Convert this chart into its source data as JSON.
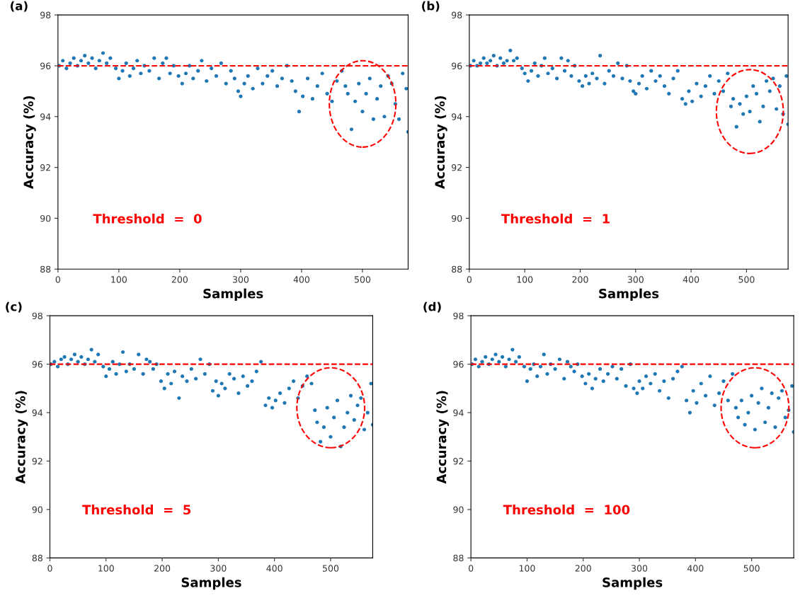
{
  "chart_data": [
    {
      "type": "scatter",
      "title": "(a)",
      "xlabel": "Samples",
      "ylabel": "Accuracy (%)",
      "xlim": [
        0,
        575
      ],
      "ylim": [
        88,
        98
      ],
      "xticks": [
        0,
        100,
        200,
        300,
        400,
        500
      ],
      "yticks": [
        88,
        90,
        92,
        94,
        96,
        98
      ],
      "grid": false,
      "marker": "circle",
      "annotations": [
        "Threshold  =  0"
      ],
      "ref_lines": [
        {
          "axis": "y",
          "value": 96,
          "color": "#ff0000",
          "line_style": "dashed"
        }
      ],
      "x": [
        2,
        8,
        14,
        20,
        26,
        32,
        38,
        44,
        50,
        56,
        62,
        68,
        74,
        80,
        86,
        95,
        100,
        106,
        112,
        118,
        124,
        130,
        136,
        142,
        150,
        158,
        166,
        172,
        178,
        184,
        190,
        198,
        204,
        210,
        216,
        222,
        230,
        236,
        244,
        252,
        260,
        268,
        276,
        284,
        290,
        296,
        300,
        306,
        312,
        320,
        328,
        336,
        344,
        352,
        360,
        368,
        376,
        384,
        390,
        396,
        402,
        410,
        418,
        426,
        434,
        442,
        450,
        458,
        466,
        472,
        476,
        482,
        488,
        494,
        500,
        506,
        512,
        518,
        524,
        530,
        536,
        542,
        548,
        554,
        560,
        566,
        572,
        575
      ],
      "series": [
        {
          "color": "#1f77b4",
          "values": [
            96.0,
            96.2,
            95.9,
            96.1,
            96.3,
            96.0,
            96.2,
            96.4,
            96.1,
            96.3,
            95.9,
            96.2,
            96.5,
            96.1,
            96.3,
            95.9,
            95.5,
            95.8,
            96.1,
            95.6,
            95.9,
            96.2,
            95.7,
            96.0,
            95.8,
            96.3,
            95.5,
            96.1,
            96.3,
            95.7,
            96.0,
            95.6,
            95.3,
            95.7,
            96.0,
            95.5,
            95.8,
            96.2,
            95.4,
            95.9,
            95.6,
            96.1,
            95.3,
            95.8,
            95.5,
            95.0,
            94.8,
            95.3,
            95.6,
            95.1,
            95.9,
            95.3,
            95.6,
            95.8,
            95.2,
            95.5,
            96.0,
            95.4,
            95.0,
            94.2,
            94.8,
            95.5,
            94.7,
            95.2,
            95.7,
            94.9,
            94.6,
            95.4,
            95.8,
            95.2,
            94.9,
            93.5,
            94.6,
            95.3,
            94.2,
            94.9,
            95.5,
            93.9,
            94.7,
            95.2,
            94.0,
            95.6,
            95.3,
            94.5,
            93.9,
            95.7,
            95.1,
            93.4
          ]
        }
      ]
    },
    {
      "type": "scatter",
      "title": "(b)",
      "xlabel": "Samples",
      "ylabel": "Accuracy (%)",
      "xlim": [
        0,
        575
      ],
      "ylim": [
        88,
        98
      ],
      "xticks": [
        0,
        100,
        200,
        300,
        400,
        500
      ],
      "yticks": [
        88,
        90,
        92,
        94,
        96,
        98
      ],
      "grid": false,
      "marker": "circle",
      "annotations": [
        "Threshold  =  1"
      ],
      "ref_lines": [
        {
          "axis": "y",
          "value": 96,
          "color": "#ff0000",
          "line_style": "dashed"
        }
      ],
      "x": [
        2,
        8,
        14,
        20,
        26,
        32,
        38,
        44,
        50,
        56,
        62,
        68,
        74,
        80,
        86,
        95,
        100,
        106,
        112,
        118,
        124,
        130,
        136,
        142,
        150,
        158,
        166,
        172,
        178,
        184,
        190,
        198,
        204,
        210,
        216,
        222,
        230,
        236,
        244,
        252,
        260,
        268,
        276,
        284,
        290,
        296,
        300,
        306,
        312,
        320,
        328,
        336,
        344,
        352,
        360,
        368,
        376,
        384,
        390,
        396,
        402,
        410,
        418,
        426,
        434,
        442,
        450,
        458,
        466,
        472,
        476,
        482,
        488,
        494,
        500,
        506,
        512,
        518,
        524,
        530,
        536,
        542,
        548,
        554,
        560,
        566,
        572,
        575
      ],
      "series": [
        {
          "color": "#1f77b4",
          "values": [
            96.0,
            96.2,
            96.0,
            96.1,
            96.3,
            96.1,
            96.2,
            96.4,
            96.0,
            96.3,
            96.1,
            96.2,
            96.6,
            96.2,
            96.3,
            95.9,
            95.7,
            95.4,
            95.8,
            96.1,
            95.6,
            96.0,
            96.3,
            95.7,
            95.9,
            95.5,
            96.3,
            95.8,
            96.2,
            95.6,
            96.0,
            95.4,
            95.2,
            95.6,
            95.3,
            95.7,
            95.5,
            96.4,
            95.3,
            95.8,
            95.6,
            96.1,
            95.5,
            96.0,
            95.4,
            95.0,
            94.9,
            95.3,
            95.6,
            95.1,
            95.8,
            95.4,
            95.6,
            95.2,
            94.9,
            95.5,
            95.8,
            94.7,
            94.5,
            95.0,
            94.6,
            95.3,
            94.8,
            95.2,
            95.6,
            94.9,
            95.4,
            95.0,
            95.7,
            94.4,
            94.7,
            93.6,
            94.5,
            94.1,
            94.8,
            94.2,
            95.2,
            94.9,
            93.8,
            94.4,
            95.4,
            95.0,
            95.5,
            94.3,
            95.2,
            94.1,
            95.6,
            93.7
          ]
        }
      ]
    },
    {
      "type": "scatter",
      "title": "(c)",
      "xlabel": "Samples",
      "ylabel": "Accuracy (%)",
      "xlim": [
        0,
        575
      ],
      "ylim": [
        88,
        98
      ],
      "xticks": [
        0,
        100,
        200,
        300,
        400,
        500
      ],
      "yticks": [
        88,
        90,
        92,
        94,
        96,
        98
      ],
      "grid": false,
      "marker": "circle",
      "annotations": [
        "Threshold  =  5"
      ],
      "ref_lines": [
        {
          "axis": "y",
          "value": 96,
          "color": "#ff0000",
          "line_style": "dashed"
        }
      ],
      "x": [
        2,
        8,
        14,
        20,
        26,
        32,
        38,
        44,
        50,
        56,
        62,
        68,
        74,
        80,
        86,
        95,
        100,
        106,
        112,
        118,
        124,
        130,
        136,
        142,
        150,
        158,
        166,
        172,
        178,
        184,
        190,
        198,
        204,
        210,
        216,
        222,
        230,
        236,
        244,
        252,
        260,
        268,
        276,
        284,
        290,
        296,
        300,
        306,
        312,
        320,
        328,
        336,
        344,
        352,
        360,
        368,
        376,
        384,
        390,
        396,
        402,
        410,
        418,
        426,
        434,
        442,
        450,
        458,
        466,
        472,
        476,
        482,
        488,
        494,
        500,
        506,
        512,
        518,
        524,
        530,
        536,
        542,
        548,
        554,
        560,
        566,
        572,
        575
      ],
      "series": [
        {
          "color": "#1f77b4",
          "values": [
            96.0,
            96.1,
            95.9,
            96.2,
            96.3,
            96.0,
            96.2,
            96.4,
            96.1,
            96.3,
            96.0,
            96.2,
            96.6,
            96.1,
            96.4,
            95.9,
            95.5,
            95.8,
            96.1,
            95.6,
            96.0,
            96.5,
            95.7,
            96.0,
            95.8,
            96.4,
            95.6,
            96.2,
            96.1,
            95.8,
            96.0,
            95.3,
            95.0,
            95.6,
            95.2,
            95.7,
            94.6,
            95.5,
            95.3,
            95.8,
            95.4,
            96.2,
            95.6,
            96.0,
            94.9,
            95.3,
            94.7,
            95.2,
            95.0,
            95.6,
            95.4,
            94.8,
            95.5,
            95.1,
            95.3,
            95.7,
            96.1,
            94.3,
            94.6,
            94.2,
            94.5,
            94.8,
            94.4,
            95.0,
            95.3,
            94.6,
            95.1,
            95.5,
            95.2,
            94.1,
            93.6,
            92.8,
            93.4,
            94.2,
            93.0,
            93.8,
            94.5,
            92.6,
            93.4,
            94.0,
            94.7,
            93.7,
            94.3,
            94.6,
            93.3,
            94.0,
            95.2,
            93.5
          ]
        }
      ]
    },
    {
      "type": "scatter",
      "title": "(d)",
      "xlabel": "Samples",
      "ylabel": "Accuracy (%)",
      "xlim": [
        0,
        575
      ],
      "ylim": [
        88,
        98
      ],
      "xticks": [
        0,
        100,
        200,
        300,
        400,
        500
      ],
      "yticks": [
        88,
        90,
        92,
        94,
        96,
        98
      ],
      "grid": false,
      "marker": "circle",
      "annotations": [
        "Threshold  =  100"
      ],
      "ref_lines": [
        {
          "axis": "y",
          "value": 96,
          "color": "#ff0000",
          "line_style": "dashed"
        }
      ],
      "x": [
        2,
        8,
        14,
        20,
        26,
        32,
        38,
        44,
        50,
        56,
        62,
        68,
        74,
        80,
        86,
        95,
        100,
        106,
        112,
        118,
        124,
        130,
        136,
        142,
        150,
        158,
        166,
        172,
        178,
        184,
        190,
        198,
        204,
        210,
        216,
        222,
        230,
        236,
        244,
        252,
        260,
        268,
        276,
        284,
        290,
        296,
        300,
        306,
        312,
        320,
        328,
        336,
        344,
        352,
        360,
        368,
        376,
        384,
        390,
        396,
        402,
        410,
        418,
        426,
        434,
        442,
        450,
        458,
        466,
        472,
        476,
        482,
        488,
        494,
        500,
        506,
        512,
        518,
        524,
        530,
        536,
        542,
        548,
        554,
        560,
        566,
        572,
        575
      ],
      "series": [
        {
          "color": "#1f77b4",
          "values": [
            96.0,
            96.2,
            95.9,
            96.1,
            96.3,
            96.0,
            96.2,
            96.4,
            96.1,
            96.3,
            95.9,
            96.2,
            96.6,
            96.1,
            96.3,
            95.9,
            95.3,
            95.8,
            96.0,
            95.5,
            95.9,
            96.4,
            95.6,
            96.0,
            95.8,
            96.2,
            95.4,
            96.1,
            95.9,
            95.7,
            96.0,
            95.5,
            95.2,
            95.6,
            95.0,
            95.4,
            95.8,
            95.3,
            95.6,
            95.9,
            95.4,
            95.8,
            95.1,
            96.0,
            95.0,
            94.8,
            95.3,
            95.0,
            95.5,
            95.2,
            95.6,
            94.9,
            95.3,
            94.6,
            95.4,
            95.7,
            95.9,
            94.5,
            94.0,
            94.9,
            94.4,
            95.2,
            94.7,
            95.5,
            94.3,
            94.8,
            95.3,
            94.5,
            95.6,
            94.2,
            93.8,
            94.5,
            93.5,
            94.0,
            94.7,
            93.3,
            94.4,
            95.0,
            93.6,
            94.2,
            94.8,
            93.4,
            94.6,
            94.9,
            93.8,
            94.1,
            95.1,
            93.2
          ]
        }
      ]
    }
  ]
}
